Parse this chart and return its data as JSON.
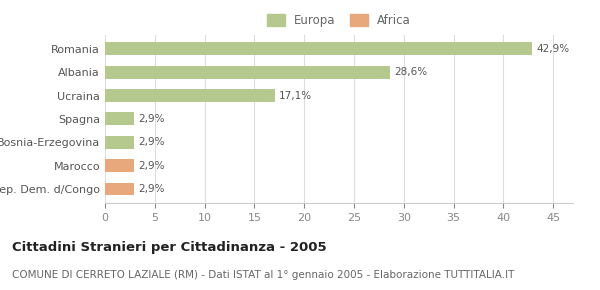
{
  "categories": [
    "Romania",
    "Albania",
    "Ucraina",
    "Spagna",
    "Bosnia-Erzegovina",
    "Marocco",
    "Rep. Dem. d/Congo"
  ],
  "values": [
    42.9,
    28.6,
    17.1,
    2.9,
    2.9,
    2.9,
    2.9
  ],
  "labels": [
    "42,9%",
    "28,6%",
    "17,1%",
    "2,9%",
    "2,9%",
    "2,9%",
    "2,9%"
  ],
  "colors": [
    "#b5c98e",
    "#b5c98e",
    "#b5c98e",
    "#b5c98e",
    "#b5c98e",
    "#e8a87c",
    "#e8a87c"
  ],
  "legend_items": [
    {
      "label": "Europa",
      "color": "#b5c98e"
    },
    {
      "label": "Africa",
      "color": "#e8a87c"
    }
  ],
  "xlim": [
    0,
    47
  ],
  "xticks": [
    0,
    5,
    10,
    15,
    20,
    25,
    30,
    35,
    40,
    45
  ],
  "title": "Cittadini Stranieri per Cittadinanza - 2005",
  "subtitle": "COMUNE DI CERRETO LAZIALE (RM) - Dati ISTAT al 1° gennaio 2005 - Elaborazione TUTTITALIA.IT",
  "bg_color": "#ffffff",
  "bar_height": 0.55,
  "title_fontsize": 9.5,
  "subtitle_fontsize": 7.5,
  "label_fontsize": 7.5,
  "tick_fontsize": 8,
  "legend_fontsize": 8.5
}
